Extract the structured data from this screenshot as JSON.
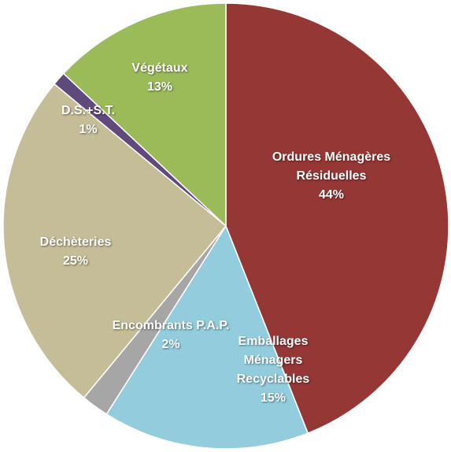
{
  "chart_data": {
    "type": "pie",
    "categories": [
      "Ordures Ménagères Résiduelles",
      "Emballages Ménagers Recyclables",
      "Encombrants P.A.P.",
      "Déchèteries",
      "D.S.+S.T.",
      "Végétaux"
    ],
    "values": [
      44,
      15,
      2,
      25,
      1,
      13
    ],
    "value_labels": [
      "44%",
      "15%",
      "2%",
      "25%",
      "1%",
      "13%"
    ],
    "colors": [
      "#953735",
      "#93cddd",
      "#a6a6a6",
      "#c4bd97",
      "#604a7b",
      "#9bbb59"
    ]
  }
}
